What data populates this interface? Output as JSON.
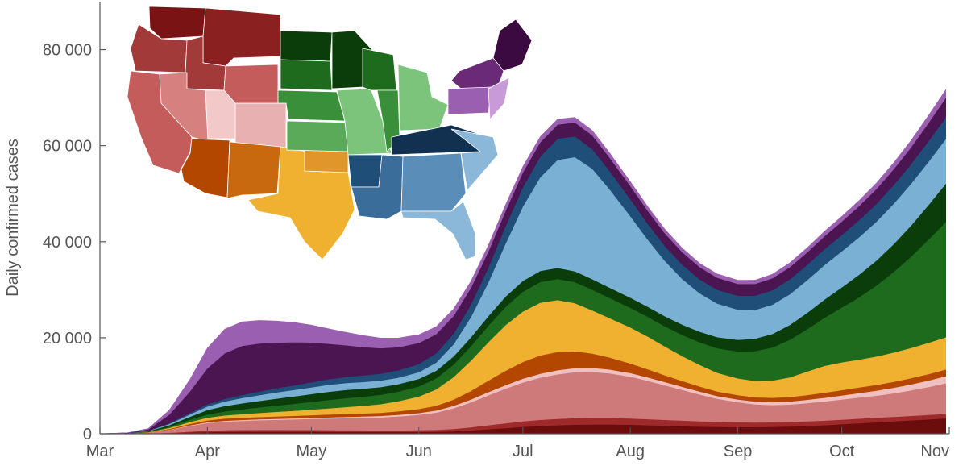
{
  "chart_data": {
    "type": "area",
    "stacked": true,
    "title": "",
    "xlabel": "",
    "ylabel": "Daily confirmed cases",
    "ylim": [
      0,
      90000
    ],
    "xlim": [
      0,
      245
    ],
    "grid": false,
    "legend": "inset-map-top-left",
    "x_ticks": [
      {
        "label": "Mar",
        "day": 0
      },
      {
        "label": "Apr",
        "day": 31
      },
      {
        "label": "May",
        "day": 61
      },
      {
        "label": "Jun",
        "day": 92
      },
      {
        "label": "Jul",
        "day": 122
      },
      {
        "label": "Aug",
        "day": 153
      },
      {
        "label": "Sep",
        "day": 184
      },
      {
        "label": "Oct",
        "day": 214
      },
      {
        "label": "Nov",
        "day": 245
      }
    ],
    "y_ticks": [
      {
        "label": "0",
        "value": 0
      },
      {
        "label": "20 000",
        "value": 20000
      },
      {
        "label": "40 000",
        "value": 40000
      },
      {
        "label": "60 000",
        "value": 60000
      },
      {
        "label": "80 000",
        "value": 80000
      }
    ],
    "x": [
      0,
      8,
      14,
      20,
      26,
      31,
      36,
      41,
      46,
      51,
      56,
      61,
      66,
      71,
      76,
      81,
      86,
      92,
      97,
      102,
      107,
      112,
      117,
      122,
      127,
      132,
      137,
      142,
      147,
      153,
      158,
      163,
      168,
      173,
      178,
      184,
      189,
      194,
      199,
      204,
      209,
      214,
      219,
      224,
      229,
      234,
      239,
      244
    ],
    "series": [
      {
        "color": "#6b0d0d",
        "values": [
          0,
          10,
          40,
          120,
          250,
          350,
          400,
          420,
          430,
          430,
          420,
          420,
          410,
          400,
          390,
          380,
          380,
          390,
          420,
          520,
          700,
          950,
          1200,
          1450,
          1650,
          1800,
          1900,
          1950,
          1950,
          1900,
          1800,
          1700,
          1600,
          1500,
          1450,
          1400,
          1400,
          1450,
          1550,
          1650,
          1800,
          2000,
          2200,
          2400,
          2600,
          2800,
          3000,
          3200
        ]
      },
      {
        "color": "#9e2a2b",
        "values": [
          0,
          10,
          30,
          100,
          200,
          300,
          350,
          380,
          400,
          400,
          390,
          380,
          370,
          360,
          350,
          340,
          340,
          360,
          400,
          500,
          650,
          850,
          1000,
          1150,
          1250,
          1300,
          1350,
          1350,
          1350,
          1300,
          1250,
          1200,
          1150,
          1100,
          1050,
          1000,
          950,
          950,
          950,
          950,
          950,
          950,
          950,
          950,
          950,
          950,
          950,
          950
        ]
      },
      {
        "color": "#cf7a7a",
        "values": [
          0,
          30,
          150,
          600,
          1200,
          1600,
          1800,
          1900,
          2000,
          2100,
          2200,
          2300,
          2400,
          2500,
          2600,
          2700,
          2900,
          3200,
          3600,
          4300,
          5200,
          6200,
          7200,
          8100,
          8800,
          9300,
          9600,
          9600,
          9300,
          8700,
          8000,
          7200,
          6400,
          5600,
          4800,
          4200,
          3800,
          3600,
          3600,
          3800,
          4000,
          4200,
          4400,
          4600,
          4900,
          5300,
          5800,
          6400
        ]
      },
      {
        "color": "#f0c0c0",
        "values": [
          0,
          5,
          20,
          60,
          110,
          150,
          170,
          180,
          190,
          200,
          210,
          230,
          250,
          270,
          290,
          310,
          340,
          380,
          430,
          500,
          580,
          660,
          730,
          780,
          820,
          850,
          850,
          830,
          800,
          760,
          720,
          680,
          640,
          600,
          580,
          560,
          560,
          580,
          620,
          680,
          760,
          850,
          950,
          1050,
          1150,
          1250,
          1350,
          1450
        ]
      },
      {
        "color": "#b34700",
        "values": [
          0,
          10,
          50,
          150,
          300,
          400,
          450,
          470,
          480,
          500,
          520,
          550,
          580,
          600,
          620,
          650,
          720,
          850,
          1000,
          1300,
          1800,
          2400,
          3000,
          3500,
          3800,
          3800,
          3500,
          3000,
          2500,
          2000,
          1700,
          1400,
          1200,
          1050,
          950,
          900,
          900,
          920,
          950,
          1000,
          1050,
          1100,
          1150,
          1200,
          1250,
          1300,
          1350,
          1400
        ]
      },
      {
        "color": "#f0b030",
        "values": [
          0,
          20,
          60,
          200,
          400,
          550,
          650,
          750,
          850,
          950,
          1050,
          1150,
          1300,
          1450,
          1600,
          1800,
          2100,
          2600,
          3400,
          4700,
          6300,
          8000,
          9500,
          10500,
          11000,
          10800,
          10000,
          9000,
          8200,
          7500,
          6800,
          6000,
          5200,
          4500,
          3900,
          3500,
          3400,
          3600,
          4100,
          4900,
          5600,
          5800,
          5800,
          5900,
          6100,
          6300,
          6500,
          6700
        ]
      },
      {
        "color": "#1e6b1e",
        "values": [
          0,
          20,
          80,
          250,
          500,
          700,
          850,
          1000,
          1150,
          1300,
          1450,
          1600,
          1750,
          1850,
          1900,
          1950,
          2000,
          2100,
          2300,
          2600,
          3000,
          3400,
          3800,
          4100,
          4300,
          4400,
          4400,
          4300,
          4200,
          4100,
          4100,
          4200,
          4400,
          4700,
          5100,
          5600,
          6200,
          6900,
          7800,
          8800,
          10000,
          11400,
          13000,
          14800,
          16800,
          19000,
          21500,
          24000
        ]
      },
      {
        "color": "#0a3d0a",
        "values": [
          0,
          20,
          100,
          300,
          600,
          900,
          1100,
          1250,
          1350,
          1450,
          1550,
          1650,
          1700,
          1700,
          1650,
          1600,
          1550,
          1550,
          1600,
          1700,
          1850,
          2000,
          2150,
          2250,
          2300,
          2300,
          2250,
          2200,
          2150,
          2100,
          2100,
          2100,
          2150,
          2200,
          2300,
          2400,
          2600,
          2800,
          3100,
          3400,
          3800,
          4200,
          4700,
          5200,
          5800,
          6500,
          7200,
          8000
        ]
      },
      {
        "color": "#7ab0d4",
        "values": [
          0,
          20,
          80,
          250,
          500,
          750,
          950,
          1100,
          1200,
          1300,
          1350,
          1400,
          1450,
          1450,
          1400,
          1350,
          1350,
          1400,
          1700,
          2500,
          4200,
          7000,
          11000,
          15500,
          19500,
          22500,
          23800,
          23000,
          20500,
          17000,
          14000,
          11500,
          9500,
          8000,
          7000,
          6300,
          6000,
          6100,
          6400,
          6800,
          7200,
          7500,
          7800,
          8100,
          8400,
          8700,
          9000,
          9300
        ]
      },
      {
        "color": "#1f4e79",
        "values": [
          0,
          10,
          50,
          150,
          300,
          450,
          550,
          650,
          750,
          850,
          950,
          1050,
          1150,
          1250,
          1350,
          1450,
          1550,
          1700,
          1900,
          2200,
          2600,
          3100,
          3600,
          4000,
          4300,
          4400,
          4300,
          4100,
          3800,
          3500,
          3300,
          3100,
          3000,
          2900,
          2900,
          2900,
          2950,
          3000,
          3100,
          3200,
          3300,
          3400,
          3550,
          3700,
          3900,
          4100,
          4300,
          4500
        ]
      },
      {
        "color": "#4a1550",
        "values": [
          0,
          40,
          300,
          1800,
          4500,
          7500,
          9500,
          10200,
          10000,
          9500,
          9000,
          8300,
          7400,
          6600,
          5900,
          5300,
          4800,
          4400,
          4000,
          3700,
          3500,
          3300,
          3200,
          3100,
          3000,
          2950,
          2900,
          2850,
          2800,
          2750,
          2700,
          2650,
          2600,
          2550,
          2500,
          2450,
          2450,
          2500,
          2550,
          2600,
          2700,
          2800,
          2950,
          3100,
          3300,
          3500,
          3800,
          4100
        ]
      },
      {
        "color": "#9a5fb0",
        "values": [
          0,
          20,
          150,
          900,
          2500,
          4200,
          5000,
          5000,
          4800,
          4500,
          4100,
          3600,
          3100,
          2700,
          2400,
          2100,
          1900,
          1700,
          1550,
          1450,
          1350,
          1300,
          1250,
          1200,
          1150,
          1100,
          1050,
          1000,
          950,
          900,
          870,
          840,
          810,
          790,
          780,
          780,
          800,
          830,
          870,
          920,
          980,
          1050,
          1130,
          1220,
          1320,
          1420,
          1530,
          1650
        ]
      }
    ]
  },
  "inset_map": {
    "regions": [
      {
        "color": "#7a1414"
      },
      {
        "color": "#8b2020"
      },
      {
        "color": "#a33a3a"
      },
      {
        "color": "#c45c5c"
      },
      {
        "color": "#d68080"
      },
      {
        "color": "#e8b0b0"
      },
      {
        "color": "#f2c8c8"
      },
      {
        "color": "#0a3d0a"
      },
      {
        "color": "#1e6b1e"
      },
      {
        "color": "#3a8f3a"
      },
      {
        "color": "#5aaa5a"
      },
      {
        "color": "#7cc47c"
      },
      {
        "color": "#b34700"
      },
      {
        "color": "#c8690f"
      },
      {
        "color": "#f0b030"
      },
      {
        "color": "#e0962a"
      },
      {
        "color": "#12304f"
      },
      {
        "color": "#1f4e79"
      },
      {
        "color": "#3a6d99"
      },
      {
        "color": "#5a8db8"
      },
      {
        "color": "#8bb8d8"
      },
      {
        "color": "#3a0a40"
      },
      {
        "color": "#6a2a78"
      },
      {
        "color": "#9a5fb0"
      },
      {
        "color": "#c89bd8"
      }
    ]
  }
}
